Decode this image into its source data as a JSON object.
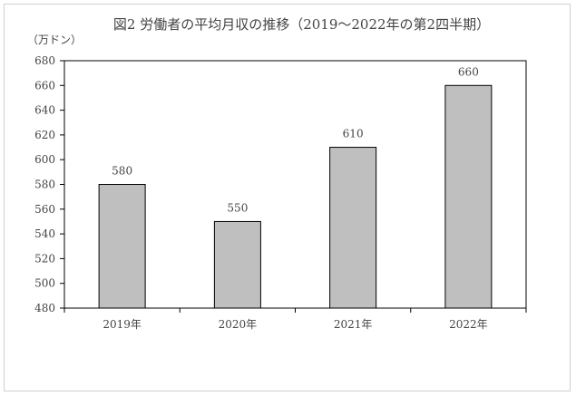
{
  "chart_data": {
    "type": "bar",
    "title": "図2 労働者の平均月収の推移（2019～2022年の第2四半期）",
    "unit_label": "（万ドン）",
    "xlabel": "",
    "ylabel": "",
    "categories": [
      "2019年",
      "2020年",
      "2021年",
      "2022年"
    ],
    "values": [
      580,
      550,
      610,
      660
    ],
    "ylim": [
      480,
      680
    ],
    "yticks": [
      480,
      500,
      520,
      540,
      560,
      580,
      600,
      620,
      640,
      660,
      680
    ],
    "grid": false,
    "legend": "none",
    "bar_color": "#bfbfbf",
    "bar_border_color": "#000000"
  }
}
